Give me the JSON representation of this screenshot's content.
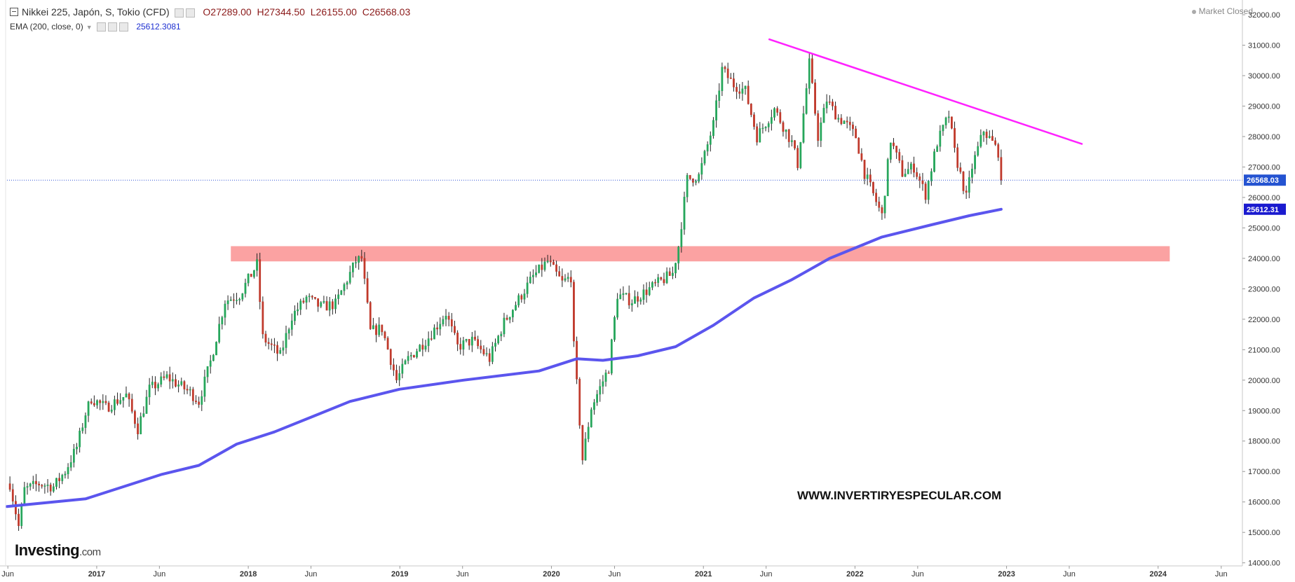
{
  "header": {
    "title": "Nikkei 225, Japón, S, Tokio (CFD)",
    "ohlc": {
      "o": "O27289.00",
      "h": "H27344.50",
      "l": "L26155.00",
      "c": "C26568.03"
    },
    "indicator_label": "EMA (200, close, 0)",
    "indicator_value": "25612.3081",
    "status": "Market Closed"
  },
  "branding": {
    "logo_main": "Investing",
    "logo_domain": ".com",
    "watermark": "WWW.INVERTIRYESPECULAR.COM"
  },
  "colors": {
    "up": "#26a65b",
    "down": "#c0392b",
    "ema": "#5b55ee",
    "trendline": "#ff22ff",
    "zone": "#fb9d9d",
    "price_line": "#3456d6",
    "price_tag_bg": "#2453d1",
    "ema_tag_bg": "#1a1acf"
  },
  "chart_data": {
    "type": "candlestick",
    "interval": "weekly",
    "x_range": [
      "2016-05-30",
      "2024-07-22"
    ],
    "ylim": [
      13900,
      32300
    ],
    "y_axis_position": "right",
    "grid": false,
    "y_ticks": [
      "14000.00",
      "15000.00",
      "16000.00",
      "17000.00",
      "18000.00",
      "19000.00",
      "20000.00",
      "21000.00",
      "22000.00",
      "23000.00",
      "24000.00",
      "25000.00",
      "26000.00",
      "27000.00",
      "28000.00",
      "29000.00",
      "30000.00",
      "31000.00",
      "32000.00"
    ],
    "x_ticks": [
      {
        "date": "2016-06-01",
        "label": "Jun",
        "bold": false
      },
      {
        "date": "2017-01-01",
        "label": "2017",
        "bold": true
      },
      {
        "date": "2017-06-01",
        "label": "Jun",
        "bold": false
      },
      {
        "date": "2018-01-01",
        "label": "2018",
        "bold": true
      },
      {
        "date": "2018-06-01",
        "label": "Jun",
        "bold": false
      },
      {
        "date": "2019-01-01",
        "label": "2019",
        "bold": true
      },
      {
        "date": "2019-06-01",
        "label": "Jun",
        "bold": false
      },
      {
        "date": "2020-01-01",
        "label": "2020",
        "bold": true
      },
      {
        "date": "2020-06-01",
        "label": "Jun",
        "bold": false
      },
      {
        "date": "2021-01-01",
        "label": "2021",
        "bold": true
      },
      {
        "date": "2021-06-01",
        "label": "Jun",
        "bold": false
      },
      {
        "date": "2022-01-01",
        "label": "2022",
        "bold": true
      },
      {
        "date": "2022-06-01",
        "label": "Jun",
        "bold": false
      },
      {
        "date": "2023-01-01",
        "label": "2023",
        "bold": true
      },
      {
        "date": "2023-06-01",
        "label": "Jun",
        "bold": false
      },
      {
        "date": "2024-01-01",
        "label": "2024",
        "bold": true
      },
      {
        "date": "2024-06-01",
        "label": "Jun",
        "bold": false
      }
    ],
    "candles_first_week": "2016-06-06",
    "candles_last_week": "2022-12-19",
    "close_anchors": [
      [
        "2016-06-06",
        16600
      ],
      [
        "2016-06-27",
        15200
      ],
      [
        "2016-07-11",
        16400
      ],
      [
        "2016-08-15",
        16600
      ],
      [
        "2016-09-19",
        16500
      ],
      [
        "2016-10-17",
        17000
      ],
      [
        "2016-11-14",
        17800
      ],
      [
        "2016-12-05",
        18900
      ],
      [
        "2016-12-19",
        19400
      ],
      [
        "2017-01-23",
        19100
      ],
      [
        "2017-03-13",
        19500
      ],
      [
        "2017-04-10",
        18400
      ],
      [
        "2017-05-08",
        19700
      ],
      [
        "2017-06-19",
        20100
      ],
      [
        "2017-08-14",
        19600
      ],
      [
        "2017-09-04",
        19300
      ],
      [
        "2017-10-02",
        20600
      ],
      [
        "2017-11-06",
        22600
      ],
      [
        "2017-12-11",
        22800
      ],
      [
        "2018-01-22",
        23800
      ],
      [
        "2018-02-05",
        21400
      ],
      [
        "2018-03-19",
        20800
      ],
      [
        "2018-04-16",
        22100
      ],
      [
        "2018-05-21",
        22700
      ],
      [
        "2018-06-25",
        22400
      ],
      [
        "2018-07-30",
        22500
      ],
      [
        "2018-09-17",
        23900
      ],
      [
        "2018-10-01",
        24000
      ],
      [
        "2018-10-22",
        21600
      ],
      [
        "2018-11-19",
        21700
      ],
      [
        "2018-12-24",
        20000
      ],
      [
        "2019-01-21",
        20700
      ],
      [
        "2019-03-11",
        21400
      ],
      [
        "2019-04-22",
        22200
      ],
      [
        "2019-05-20",
        21100
      ],
      [
        "2019-06-24",
        21300
      ],
      [
        "2019-08-05",
        20700
      ],
      [
        "2019-09-09",
        21900
      ],
      [
        "2019-10-21",
        22800
      ],
      [
        "2019-11-18",
        23400
      ],
      [
        "2019-12-23",
        23900
      ],
      [
        "2020-01-27",
        23200
      ],
      [
        "2020-02-17",
        23400
      ],
      [
        "2020-02-24",
        21100
      ],
      [
        "2020-03-16",
        17400
      ],
      [
        "2020-04-06",
        19100
      ],
      [
        "2020-05-18",
        20400
      ],
      [
        "2020-06-08",
        22800
      ],
      [
        "2020-07-13",
        22600
      ],
      [
        "2020-08-24",
        23000
      ],
      [
        "2020-10-19",
        23500
      ],
      [
        "2020-11-02",
        24400
      ],
      [
        "2020-11-23",
        26600
      ],
      [
        "2020-12-21",
        26700
      ],
      [
        "2021-01-25",
        28400
      ],
      [
        "2021-02-15",
        30200
      ],
      [
        "2021-03-15",
        29700
      ],
      [
        "2021-04-12",
        29500
      ],
      [
        "2021-05-10",
        28000
      ],
      [
        "2021-06-21",
        28900
      ],
      [
        "2021-08-02",
        27800
      ],
      [
        "2021-08-16",
        27100
      ],
      [
        "2021-09-13",
        30400
      ],
      [
        "2021-10-04",
        28000
      ],
      [
        "2021-10-25",
        29200
      ],
      [
        "2021-11-22",
        28600
      ],
      [
        "2021-12-06",
        28500
      ],
      [
        "2022-01-03",
        28000
      ],
      [
        "2022-01-24",
        26800
      ],
      [
        "2022-03-07",
        25400
      ],
      [
        "2022-03-28",
        27900
      ],
      [
        "2022-04-25",
        26800
      ],
      [
        "2022-05-23",
        27000
      ],
      [
        "2022-06-20",
        26100
      ],
      [
        "2022-07-18",
        27800
      ],
      [
        "2022-08-15",
        28700
      ],
      [
        "2022-08-29",
        27500
      ],
      [
        "2022-09-26",
        26000
      ],
      [
        "2022-10-10",
        27000
      ],
      [
        "2022-11-07",
        28200
      ],
      [
        "2022-11-28",
        27800
      ],
      [
        "2022-12-12",
        27500
      ],
      [
        "2022-12-19",
        26568
      ]
    ],
    "ema": {
      "label": "EMA (200, close, 0)",
      "last_value": 25612.31,
      "points": [
        [
          "2016-05-30",
          15850
        ],
        [
          "2016-12-05",
          16100
        ],
        [
          "2017-03-06",
          16500
        ],
        [
          "2017-06-05",
          16900
        ],
        [
          "2017-09-04",
          17200
        ],
        [
          "2017-12-04",
          17900
        ],
        [
          "2018-03-05",
          18300
        ],
        [
          "2018-06-04",
          18800
        ],
        [
          "2018-09-03",
          19300
        ],
        [
          "2018-12-31",
          19700
        ],
        [
          "2019-06-03",
          20000
        ],
        [
          "2019-12-02",
          20300
        ],
        [
          "2020-03-02",
          20700
        ],
        [
          "2020-05-04",
          20650
        ],
        [
          "2020-07-27",
          20800
        ],
        [
          "2020-10-26",
          21100
        ],
        [
          "2021-01-25",
          21800
        ],
        [
          "2021-05-03",
          22700
        ],
        [
          "2021-08-02",
          23300
        ],
        [
          "2021-11-01",
          24000
        ],
        [
          "2022-03-07",
          24700
        ],
        [
          "2022-07-04",
          25100
        ],
        [
          "2022-10-03",
          25400
        ],
        [
          "2022-12-19",
          25612
        ]
      ]
    },
    "resistance_zone": {
      "x_start": "2017-11-20",
      "x_end": "2024-01-29",
      "y_low": 23900,
      "y_high": 24400
    },
    "trendline": {
      "start": [
        "2021-06-07",
        31200
      ],
      "end": [
        "2023-07-03",
        27750
      ]
    },
    "last_price": {
      "value": 26568.03,
      "label": "26568.03"
    },
    "ema_tag": {
      "value": 25612.31,
      "label": "25612.31"
    }
  }
}
